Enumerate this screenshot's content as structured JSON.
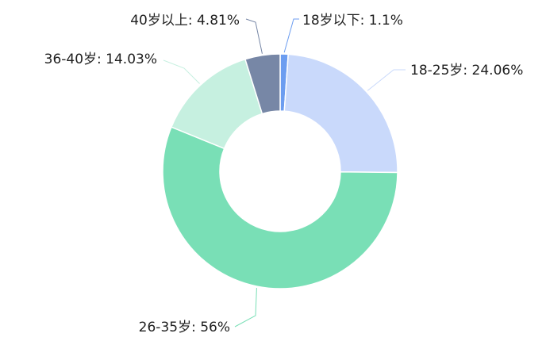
{
  "chart_data": {
    "type": "pie",
    "donut": true,
    "slices": [
      {
        "label": "18岁以下: 1.1%",
        "category": "18岁以下",
        "value": 1.1,
        "color": "#6c9df0"
      },
      {
        "label": "18-25岁: 24.06%",
        "category": "18-25岁",
        "value": 24.06,
        "color": "#c9d9fb"
      },
      {
        "label": "26-35岁: 56%",
        "category": "26-35岁",
        "value": 56,
        "color": "#79dfb6"
      },
      {
        "label": "36-40岁: 14.03%",
        "category": "36-40岁",
        "value": 14.03,
        "color": "#c6f0e0"
      },
      {
        "label": "40岁以上: 4.81%",
        "category": "40岁以上",
        "value": 4.81,
        "color": "#7787a6"
      }
    ]
  }
}
